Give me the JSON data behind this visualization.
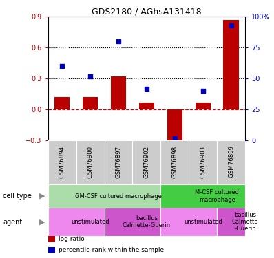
{
  "title": "GDS2180 / AGhsA131418",
  "samples": [
    "GSM76894",
    "GSM76900",
    "GSM76897",
    "GSM76902",
    "GSM76898",
    "GSM76903",
    "GSM76899"
  ],
  "log_ratio": [
    0.12,
    0.12,
    0.32,
    0.07,
    -0.32,
    0.07,
    0.87
  ],
  "percentile_rank": [
    60,
    52,
    80,
    42,
    2,
    40,
    93
  ],
  "bar_color": "#bb0000",
  "dot_color": "#0000bb",
  "ylim_left": [
    -0.3,
    0.9
  ],
  "ylim_right": [
    0,
    100
  ],
  "yticks_left": [
    -0.3,
    0.0,
    0.3,
    0.6,
    0.9
  ],
  "yticks_right": [
    0,
    25,
    50,
    75,
    100
  ],
  "ytick_labels_right": [
    "0",
    "25",
    "50",
    "75",
    "100%"
  ],
  "hline_y": [
    0.3,
    0.6
  ],
  "dashed_zero_color": "#cc0000",
  "cell_type_groups": [
    {
      "label": "GM-CSF cultured macrophage",
      "start": 0,
      "end": 4,
      "color": "#aaddaa"
    },
    {
      "label": "M-CSF cultured\nmacrophage",
      "start": 4,
      "end": 7,
      "color": "#44cc44"
    }
  ],
  "agent_groups": [
    {
      "label": "unstimulated",
      "start": 0,
      "end": 2,
      "color": "#ee88ee"
    },
    {
      "label": "bacillus\nCalmette-Guerin",
      "start": 2,
      "end": 4,
      "color": "#cc55cc"
    },
    {
      "label": "unstimulated",
      "start": 4,
      "end": 6,
      "color": "#ee88ee"
    },
    {
      "label": "bacillus\nCalmette\n-Guerin",
      "start": 6,
      "end": 7,
      "color": "#cc55cc"
    }
  ],
  "sample_box_color": "#cccccc",
  "legend_items": [
    {
      "label": "log ratio",
      "color": "#bb0000"
    },
    {
      "label": "percentile rank within the sample",
      "color": "#0000bb"
    }
  ],
  "left_labels": [
    "cell type",
    "agent"
  ],
  "arrow_char": "▶"
}
